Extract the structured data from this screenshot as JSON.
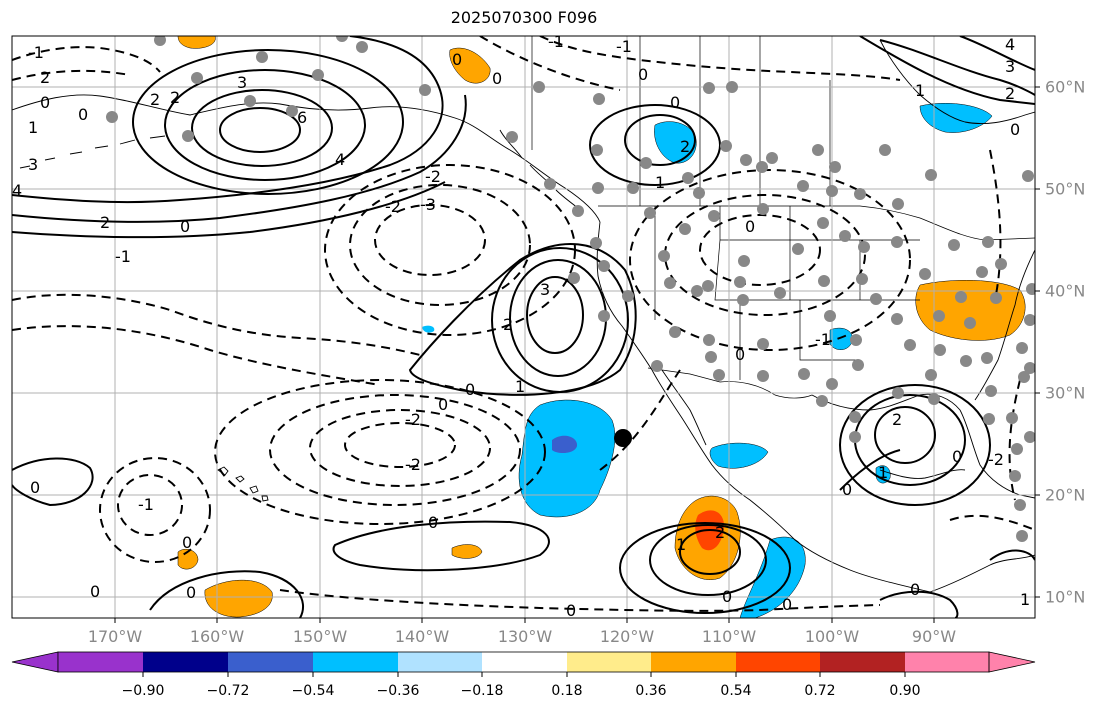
{
  "title": "2025070300 F096",
  "map": {
    "projection": "plate-carree",
    "lon_range": [
      -180,
      -80
    ],
    "lat_range": [
      8,
      65
    ],
    "lon_ticks": [
      "170°W",
      "160°W",
      "150°W",
      "140°W",
      "130°W",
      "120°W",
      "110°W",
      "100°W",
      "90°W"
    ],
    "lat_ticks": [
      "60°N",
      "50°N",
      "40°N",
      "30°N",
      "20°N",
      "10°N"
    ],
    "gridlines": true,
    "contour_labels": [
      "0",
      "1",
      "2",
      "3",
      "4",
      "6",
      "-1",
      "-2",
      "-3",
      "3",
      "0",
      "1",
      "2"
    ],
    "marker": {
      "lon": -120.3,
      "lat": 25.6,
      "color": "#000000"
    },
    "station_dot_color": "#888888"
  },
  "colorbar": {
    "ticks": [
      "−0.90",
      "−0.72",
      "−0.54",
      "−0.36",
      "−0.18",
      "0.18",
      "0.36",
      "0.54",
      "0.72",
      "0.90"
    ],
    "colors": [
      "#9932cc",
      "#00008b",
      "#3a5fcd",
      "#00bfff",
      "#b0e2ff",
      "#ffffff",
      "#ffec8b",
      "#ffa500",
      "#ff4500",
      "#b22222",
      "#ff82ab"
    ]
  }
}
